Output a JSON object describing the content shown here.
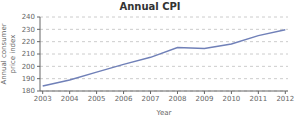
{
  "chart_data": {
    "type": "line",
    "title": "Annual CPI",
    "xlabel": "Year",
    "ylabel": "Annual consumer\nprice index",
    "x": [
      2003,
      2004,
      2005,
      2006,
      2007,
      2008,
      2009,
      2010,
      2011,
      2012
    ],
    "values": [
      184.0,
      188.9,
      195.3,
      201.6,
      207.3,
      215.3,
      214.5,
      218.1,
      224.9,
      229.6
    ],
    "color": "#7080b8",
    "xlim": [
      2002.9,
      2012.1
    ],
    "ylim": [
      180,
      240
    ],
    "xticks": [
      2003,
      2004,
      2005,
      2006,
      2007,
      2008,
      2009,
      2010,
      2011,
      2012
    ],
    "yticks": [
      180,
      190,
      200,
      210,
      220,
      230,
      240
    ],
    "grid": true
  }
}
